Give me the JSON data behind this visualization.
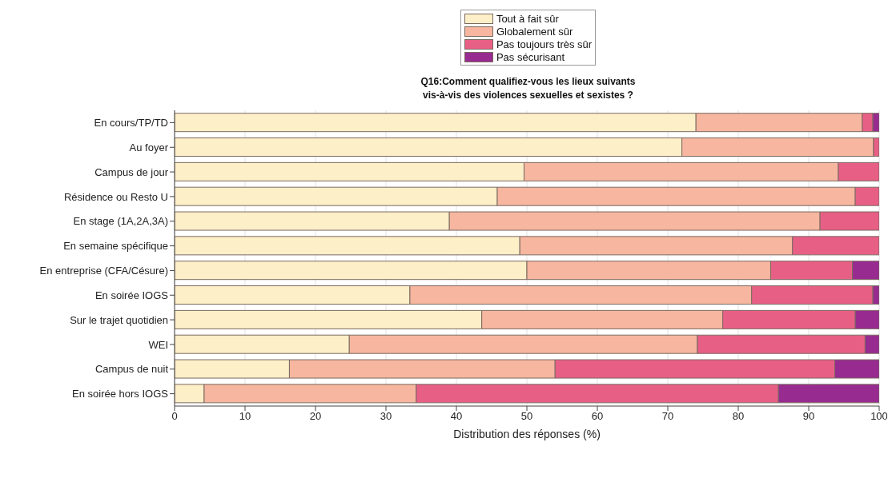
{
  "chart_data": {
    "type": "bar",
    "orientation": "horizontal",
    "stacked": true,
    "title": "Q16:Comment qualifiez-vous les lieux suivants\nvis-à-vis des violences sexuelles et sexistes ?",
    "xlabel": "Distribution des réponses (%)",
    "categories": [
      "En cours/TP/TD",
      "Au foyer",
      "Campus de jour",
      "Résidence ou Resto U",
      "En stage (1A,2A,3A)",
      "En semaine spécifique",
      "En entreprise (CFA/Césure)",
      "En soirée IOGS",
      "Sur le trajet quotidien",
      "WEI",
      "Campus de nuit",
      "En soirée hors IOGS"
    ],
    "series": [
      {
        "name": "Tout à fait sûr",
        "color": "#fdefc8",
        "values": [
          74,
          72,
          49.6,
          45.8,
          39,
          49,
          50,
          33.4,
          43.6,
          24.8,
          16.3,
          4.2
        ]
      },
      {
        "name": "Globalement sûr",
        "color": "#f6b69f",
        "values": [
          23.6,
          27.2,
          44.6,
          50.8,
          52.6,
          38.7,
          34.6,
          48.5,
          34.2,
          49.4,
          37.7,
          30.1
        ]
      },
      {
        "name": "Pas toujours très sûr",
        "color": "#e85f86",
        "values": [
          1.5,
          0.8,
          5.8,
          3.4,
          8.4,
          12.3,
          11.6,
          17.2,
          18.8,
          23.8,
          39.7,
          51.4
        ]
      },
      {
        "name": "Pas sécurisant",
        "color": "#982b90",
        "values": [
          0.9,
          0,
          0,
          0,
          0,
          0,
          3.8,
          0.9,
          3.4,
          2,
          6.3,
          14.3
        ]
      }
    ],
    "xlim": [
      0,
      100
    ],
    "xticks": [
      0,
      10,
      20,
      30,
      40,
      50,
      60,
      70,
      80,
      90,
      100
    ],
    "grid": "x",
    "legend": "top"
  }
}
